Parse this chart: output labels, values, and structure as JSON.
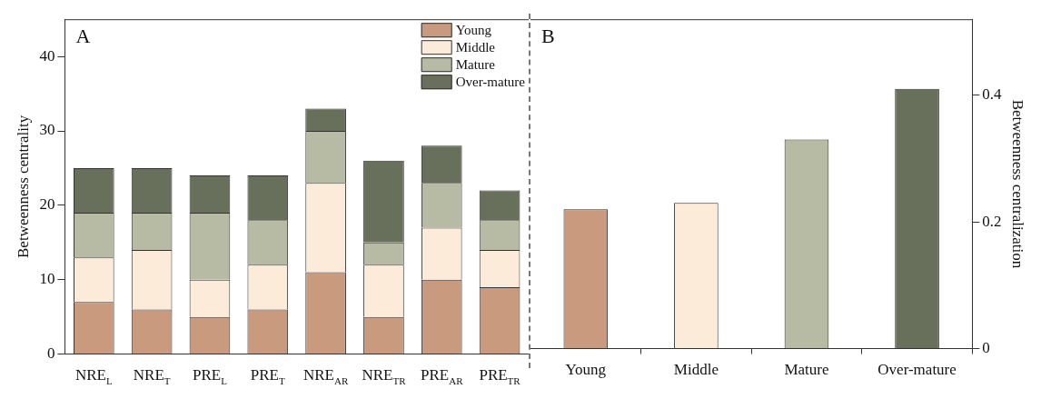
{
  "chart_data": [
    {
      "type": "bar",
      "stacked": true,
      "categories": [
        "NRE$_{L}$",
        "NRE$_{T}$",
        "PRE$_{L}$",
        "PRE$_{T}$",
        "NRE$_{AR}$",
        "NRE$_{TR}$",
        "PRE$_{AR}$",
        "PRE$_{TR}$"
      ],
      "series": [
        {
          "name": "Young",
          "color": "#c99a7e",
          "values": [
            7,
            6,
            5,
            6,
            11,
            5,
            10,
            9
          ]
        },
        {
          "name": "Middle",
          "color": "#fdebd9",
          "values": [
            6,
            8,
            5,
            6,
            12,
            7,
            7,
            5
          ]
        },
        {
          "name": "Mature",
          "color": "#b8bba3",
          "values": [
            6,
            5,
            9,
            6,
            7,
            3,
            6,
            4
          ]
        },
        {
          "name": "Over-mature",
          "color": "#68705b",
          "values": [
            6,
            6,
            5,
            6,
            3,
            11,
            5,
            4
          ]
        }
      ],
      "ylabel": "Betweenness centrality",
      "ylim": [
        0,
        45
      ],
      "yticks": [
        0,
        10,
        20,
        30,
        40
      ],
      "legend": "top right",
      "annotations": [
        "A"
      ]
    },
    {
      "type": "bar",
      "categories": [
        "Young",
        "Middle",
        "Mature",
        "Over-mature"
      ],
      "series": [
        {
          "axis": "y2",
          "colors": [
            "#c99a7e",
            "#fdebd9",
            "#b8bba3",
            "#68705b"
          ],
          "values": [
            0.22,
            0.23,
            0.33,
            0.41
          ]
        }
      ],
      "y2label": "Betweenness centralization",
      "y2lim": [
        0,
        0.52
      ],
      "y2ticks": [
        0,
        0.2,
        0.4
      ],
      "annotations": [
        "B"
      ]
    }
  ]
}
